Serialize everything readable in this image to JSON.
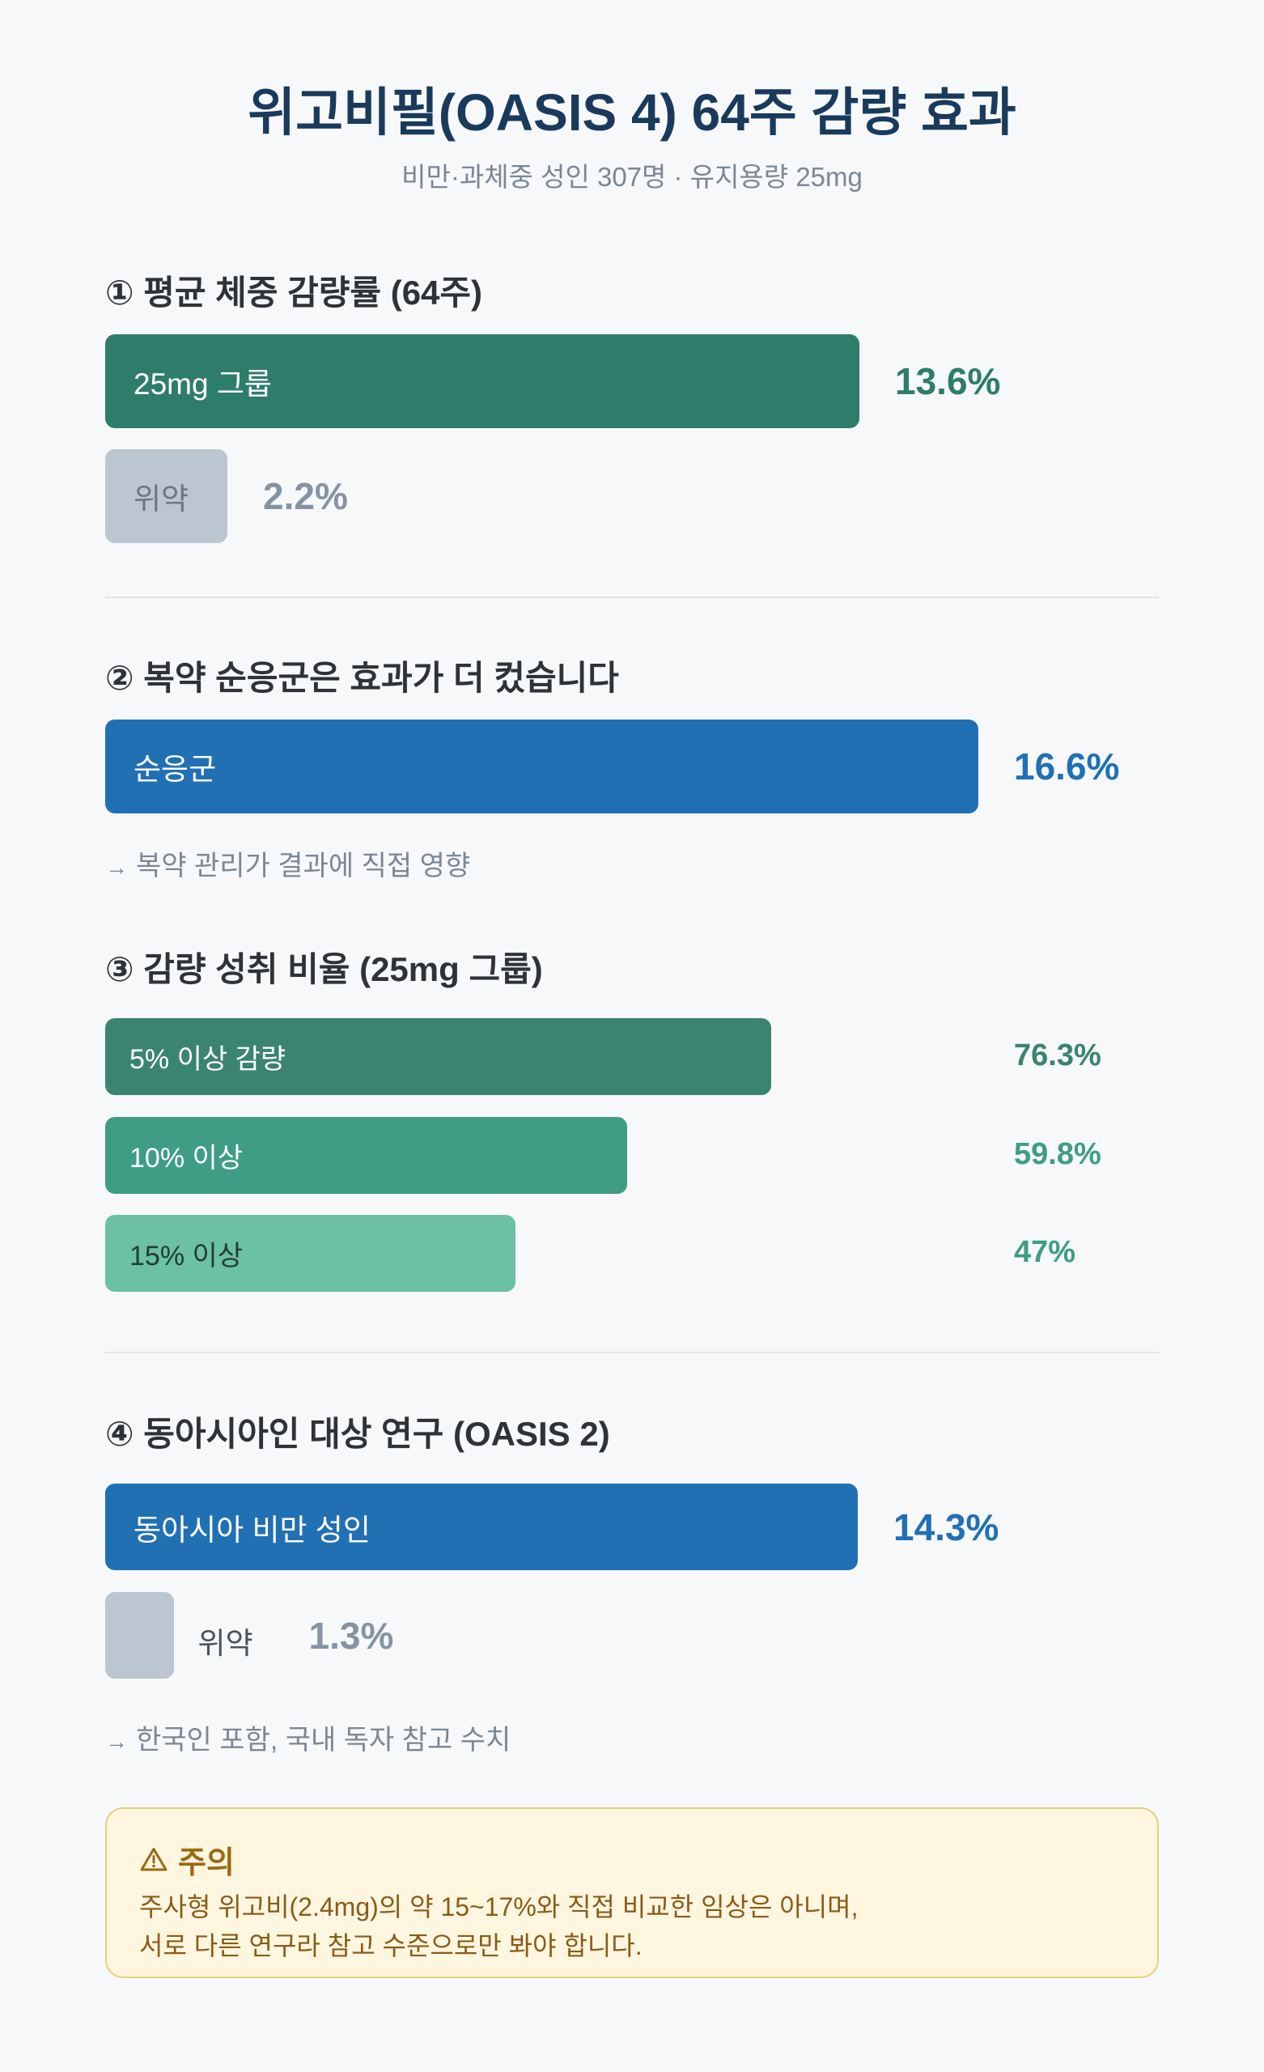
{
  "title": "위고비필(OASIS 4) 64주 감량 효과",
  "subtitle": "비만·과체중 성인 307명 · 유지용량 25mg",
  "sections": [
    {
      "heading": "① 평균 체중 감량률 (64주)"
    },
    {
      "heading": "② 복약 순응군은 효과가 더 컸습니다",
      "note": "복약 관리가 결과에 직접 영향"
    },
    {
      "heading": "③ 감량 성취 비율 (25mg 그룹)"
    },
    {
      "heading": "④ 동아시아인 대상 연구 (OASIS 2)",
      "note": "한국인 포함, 국내 독자 참고 수치"
    }
  ],
  "note_arrow": "→",
  "warning": {
    "title": "주의",
    "line1": "주사형 위고비(2.4mg)의 약 15~17%와 직접 비교한 임상은 아니며,",
    "line2": "서로 다른 연구라 참고 수준으로만 봐야 합니다.",
    "icon": "warning-triangle-icon"
  },
  "colors": {
    "green_dark": "#2e7d6b",
    "green_mid": "#3f9d84",
    "green_light": "#6cc0a6",
    "blue": "#2170b4",
    "placebo": "#bcc6d0",
    "placebo_text": "#8593a3",
    "title": "#1a3a5c"
  },
  "chart_data": [
    {
      "type": "bar",
      "title": "① 평균 체중 감량률 (64주)",
      "unit": "%",
      "categories": [
        "25mg 그룹",
        "위약"
      ],
      "values": [
        13.6,
        2.2
      ],
      "value_labels": [
        "13.6%",
        "2.2%"
      ]
    },
    {
      "type": "bar",
      "title": "② 복약 순응군은 효과가 더 컸습니다",
      "unit": "%",
      "categories": [
        "순응군"
      ],
      "values": [
        16.6
      ],
      "value_labels": [
        "16.6%"
      ]
    },
    {
      "type": "bar",
      "title": "③ 감량 성취 비율 (25mg 그룹)",
      "unit": "%",
      "categories": [
        "5% 이상 감량",
        "10% 이상",
        "15% 이상"
      ],
      "values": [
        76.3,
        59.8,
        47
      ],
      "value_labels": [
        "76.3%",
        "59.8%",
        "47%"
      ]
    },
    {
      "type": "bar",
      "title": "④ 동아시아인 대상 연구 (OASIS 2)",
      "unit": "%",
      "categories": [
        "동아시아 비만 성인",
        "위약"
      ],
      "values": [
        14.3,
        1.3
      ],
      "value_labels": [
        "14.3%",
        "1.3%"
      ]
    }
  ]
}
